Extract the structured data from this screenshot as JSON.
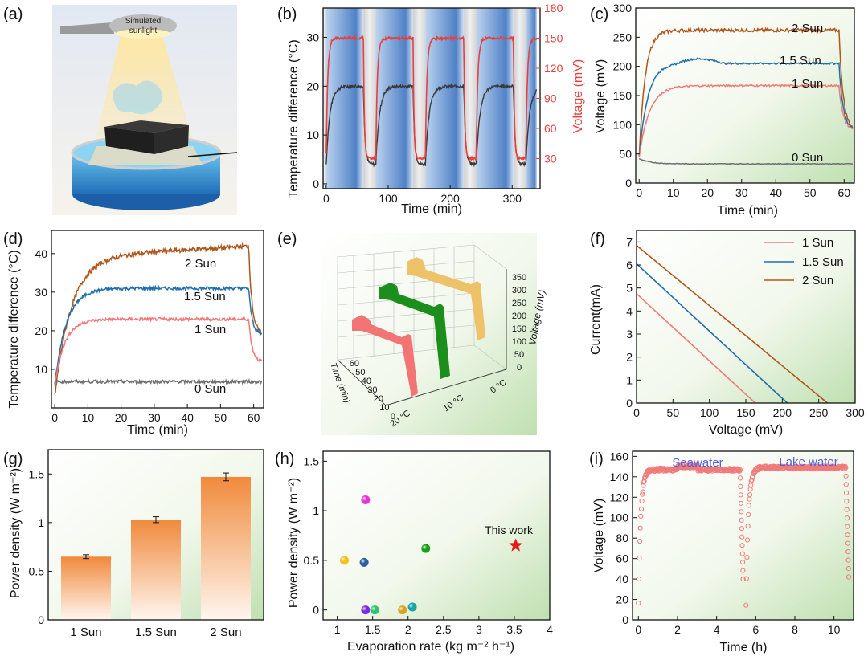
{
  "colors": {
    "red": "#e8403e",
    "sun1": "#f07a7a",
    "sun15": "#1f6fae",
    "sun2": "#b0561a",
    "gray": "#707070",
    "green": "#188d18",
    "gold": "#eec269",
    "star": "#e21b1b",
    "blueText": "#5560d8"
  },
  "panels": {
    "a": {
      "label": "(a)",
      "lamp_label_1": "Simulated",
      "lamp_label_2": "sunlight"
    },
    "b": {
      "label": "(b)"
    },
    "c": {
      "label": "(c)"
    },
    "d": {
      "label": "(d)"
    },
    "e": {
      "label": "(e)",
      "voltage_ticks": [
        "350",
        "300",
        "250",
        "200",
        "150",
        "100",
        "50",
        "0"
      ],
      "voltage_axis": "Voltage (mV)",
      "time_ticks": [
        "60",
        "50",
        "40",
        "30",
        "20",
        "10",
        "0"
      ],
      "time_axis": "Time (min)",
      "temp_ticks": [
        "20 °C",
        "10 °C",
        "0 °C"
      ]
    },
    "f": {
      "label": "(f)"
    },
    "g": {
      "label": "(g)"
    },
    "h": {
      "label": "(h)"
    },
    "i": {
      "label": "(i)"
    }
  },
  "chart_data": [
    {
      "id": "b",
      "type": "line",
      "xlabel": "Time (min)",
      "ylabel": "Temperature difference (°C)",
      "y2label": "Voltage (mV)",
      "xlim": [
        -5,
        345
      ],
      "ylim": [
        -1,
        36
      ],
      "y2lim": [
        0,
        180
      ],
      "x_ticks": [
        "0",
        "100",
        "200",
        "300"
      ],
      "y_ticks": [
        "0",
        "10",
        "20",
        "30"
      ],
      "y2_ticks": [
        "30",
        "60",
        "90",
        "120",
        "150",
        "180"
      ],
      "light_intervals": [
        [
          0,
          60
        ],
        [
          80,
          140
        ],
        [
          160,
          222
        ],
        [
          242,
          302
        ],
        [
          322,
          340
        ]
      ],
      "series": [
        {
          "name": "Temperature difference",
          "axis": "left",
          "plateau": 20
        },
        {
          "name": "Voltage",
          "axis": "right",
          "plateau": 150
        }
      ]
    },
    {
      "id": "c",
      "type": "line",
      "xlabel": "Time (min)",
      "ylabel": "Voltage (mV)",
      "xlim": [
        -1,
        63
      ],
      "ylim": [
        0,
        300
      ],
      "x_ticks": [
        "0",
        "10",
        "20",
        "30",
        "40",
        "50",
        "60"
      ],
      "y_ticks": [
        "0",
        "50",
        "100",
        "150",
        "200",
        "250",
        "300"
      ],
      "series": [
        {
          "name": "2 Sun",
          "plateau": 262
        },
        {
          "name": "1.5 Sun",
          "plateau": 205
        },
        {
          "name": "1 Sun",
          "plateau": 167
        },
        {
          "name": "0 Sun",
          "plateau": 33
        }
      ]
    },
    {
      "id": "d",
      "type": "line",
      "xlabel": "Time (min)",
      "ylabel": "Temperature difference (°C)",
      "xlim": [
        -1,
        63
      ],
      "ylim": [
        0,
        46
      ],
      "x_ticks": [
        "0",
        "10",
        "20",
        "30",
        "40",
        "50",
        "60"
      ],
      "y_ticks": [
        "10",
        "20",
        "30",
        "40"
      ],
      "series": [
        {
          "name": "2 Sun",
          "plateau": 42
        },
        {
          "name": "1.5 Sun",
          "plateau": 31
        },
        {
          "name": "1 Sun",
          "plateau": 23
        },
        {
          "name": "0 Sun",
          "plateau": 7
        }
      ]
    },
    {
      "id": "f",
      "type": "line",
      "xlabel": "Voltage (mV)",
      "ylabel": "Current(mA)",
      "xlim": [
        0,
        300
      ],
      "ylim": [
        0,
        7.5
      ],
      "x_ticks": [
        "0",
        "50",
        "100",
        "150",
        "200",
        "250",
        "300"
      ],
      "y_ticks": [
        "0",
        "1",
        "2",
        "3",
        "4",
        "5",
        "6",
        "7"
      ],
      "series": [
        {
          "name": "1 Sun",
          "isc": 4.75,
          "voc": 163
        },
        {
          "name": "1.5 Sun",
          "isc": 6.05,
          "voc": 207
        },
        {
          "name": "2 Sun",
          "isc": 6.85,
          "voc": 262
        }
      ]
    },
    {
      "id": "g",
      "type": "bar",
      "ylabel": "Power density (W m⁻²)",
      "ylim": [
        0,
        1.75
      ],
      "y_ticks": [
        "0",
        "0.5",
        "1",
        "1.5"
      ],
      "categories": [
        "1 Sun",
        "1.5 Sun",
        "2 Sun"
      ],
      "values": [
        0.65,
        1.03,
        1.47
      ],
      "errors": [
        0.02,
        0.03,
        0.04
      ]
    },
    {
      "id": "h",
      "type": "scatter",
      "xlabel": "Evaporation rate (kg m⁻² h⁻¹)",
      "ylabel": "Power density (W m⁻²)",
      "xlim": [
        0.8,
        4
      ],
      "ylim": [
        -0.1,
        1.6
      ],
      "x_ticks": [
        "1",
        "1.5",
        "2",
        "2.5",
        "3",
        "3.5",
        "4"
      ],
      "y_ticks": [
        "0",
        "0.5",
        "1",
        "1.5"
      ],
      "points": [
        {
          "x": 1.1,
          "y": 0.5,
          "color": "#f1c21b"
        },
        {
          "x": 1.38,
          "y": 0.48,
          "color": "#2a5fa2"
        },
        {
          "x": 1.4,
          "y": 1.11,
          "color": "#e632d7"
        },
        {
          "x": 2.25,
          "y": 0.62,
          "color": "#18a018"
        },
        {
          "x": 1.4,
          "y": 0.0,
          "color": "#7c2be2"
        },
        {
          "x": 1.53,
          "y": 0.0,
          "color": "#2bc46f"
        },
        {
          "x": 1.92,
          "y": 0.0,
          "color": "#d9a21a"
        },
        {
          "x": 2.06,
          "y": 0.03,
          "color": "#1aa2a6"
        }
      ],
      "highlight": {
        "x": 3.52,
        "y": 0.65,
        "label": "This work"
      }
    },
    {
      "id": "i",
      "type": "scatter",
      "xlabel": "Time (h)",
      "ylabel": "Voltage (mV)",
      "xlim": [
        -0.3,
        11
      ],
      "ylim": [
        0,
        165
      ],
      "x_ticks": [
        "0",
        "2",
        "4",
        "6",
        "8",
        "10"
      ],
      "y_ticks": [
        "0",
        "20",
        "40",
        "60",
        "80",
        "100",
        "120",
        "140",
        "160"
      ],
      "annotations": [
        "Seawater",
        "Lake water"
      ],
      "segments": [
        {
          "start": 0,
          "end": 5.2,
          "plateau": 147
        },
        {
          "start": 5.5,
          "end": 10.6,
          "plateau": 149
        }
      ]
    }
  ]
}
